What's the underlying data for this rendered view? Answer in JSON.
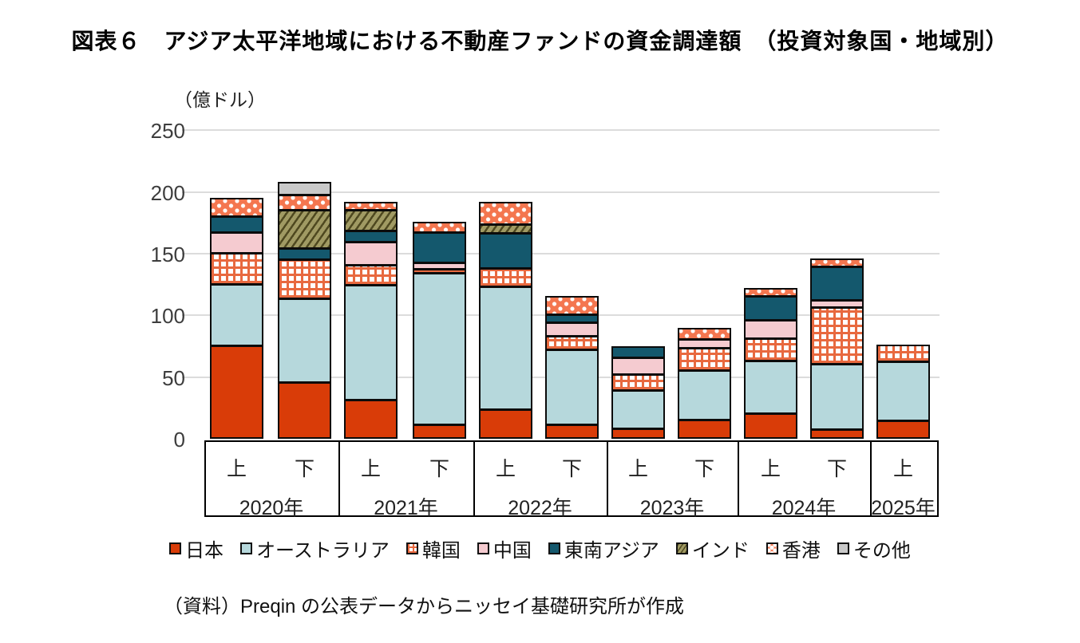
{
  "title": "図表６　アジア太平洋地域における不動産ファンドの資金調達額　（投資対象国・地域別）",
  "unit_label": "（億ドル）",
  "source": "（資料）Preqin の公表データからニッセイ基礎研究所が作成",
  "y_axis": {
    "ticks": [
      0,
      50,
      100,
      150,
      200,
      250
    ],
    "max": 250,
    "gridline_color": "#dcdcdc"
  },
  "x_axis": {
    "groups": [
      {
        "year": "2020年",
        "halves": [
          "上",
          "下"
        ]
      },
      {
        "year": "2021年",
        "halves": [
          "上",
          "下"
        ]
      },
      {
        "year": "2022年",
        "halves": [
          "上",
          "下"
        ]
      },
      {
        "year": "2023年",
        "halves": [
          "上",
          "下"
        ]
      },
      {
        "year": "2024年",
        "halves": [
          "上",
          "下"
        ]
      },
      {
        "year": "2025年",
        "halves": [
          "上"
        ]
      }
    ]
  },
  "chart_data": {
    "type": "bar",
    "stacked": true,
    "title": "図表６　アジア太平洋地域における不動産ファンドの資金調達額　（投資対象国・地域別）",
    "ylabel": "（億ドル）",
    "ylim": [
      0,
      250
    ],
    "grid": true,
    "legend_position": "bottom",
    "categories": [
      "2020年上",
      "2020年下",
      "2021年上",
      "2021年下",
      "2022年上",
      "2022年下",
      "2023年上",
      "2023年下",
      "2024年上",
      "2024年下",
      "2025年上"
    ],
    "series": [
      {
        "name": "日本",
        "color": "#d93c08",
        "pattern": "solid",
        "values": [
          75,
          45,
          31,
          11,
          23,
          11,
          8,
          15,
          20,
          7,
          14
        ]
      },
      {
        "name": "オーストラリア",
        "color": "#b6d8dc",
        "pattern": "solid",
        "values": [
          50,
          68,
          93,
          123,
          100,
          61,
          31,
          40,
          43,
          53,
          48
        ]
      },
      {
        "name": "韓国",
        "color": "#e8693f",
        "pattern": "crosshatch",
        "values": [
          25,
          32,
          16,
          3,
          15,
          11,
          13,
          18,
          18,
          46,
          14
        ]
      },
      {
        "name": "中国",
        "color": "#f5cbd0",
        "pattern": "solid",
        "values": [
          17,
          0,
          19,
          5,
          0,
          11,
          13,
          7,
          15,
          6,
          0
        ]
      },
      {
        "name": "東南アジア",
        "color": "#14586d",
        "pattern": "solid",
        "values": [
          13,
          9,
          9,
          25,
          28,
          6,
          10,
          0,
          19,
          27,
          0
        ]
      },
      {
        "name": "インド",
        "color": "#a09a63",
        "pattern": "diagonal",
        "values": [
          0,
          31,
          17,
          0,
          7,
          0,
          0,
          0,
          0,
          0,
          0
        ]
      },
      {
        "name": "香港",
        "color": "#f4764f",
        "pattern": "dots",
        "values": [
          15,
          12,
          7,
          9,
          19,
          16,
          0,
          10,
          7,
          7,
          0
        ]
      },
      {
        "name": "その他",
        "color": "#c9c9c9",
        "pattern": "solid",
        "values": [
          0,
          11,
          0,
          0,
          0,
          0,
          0,
          0,
          0,
          0,
          0
        ]
      }
    ],
    "totals": [
      195,
      208,
      192,
      176,
      192,
      116,
      75,
      90,
      122,
      146,
      76
    ]
  }
}
